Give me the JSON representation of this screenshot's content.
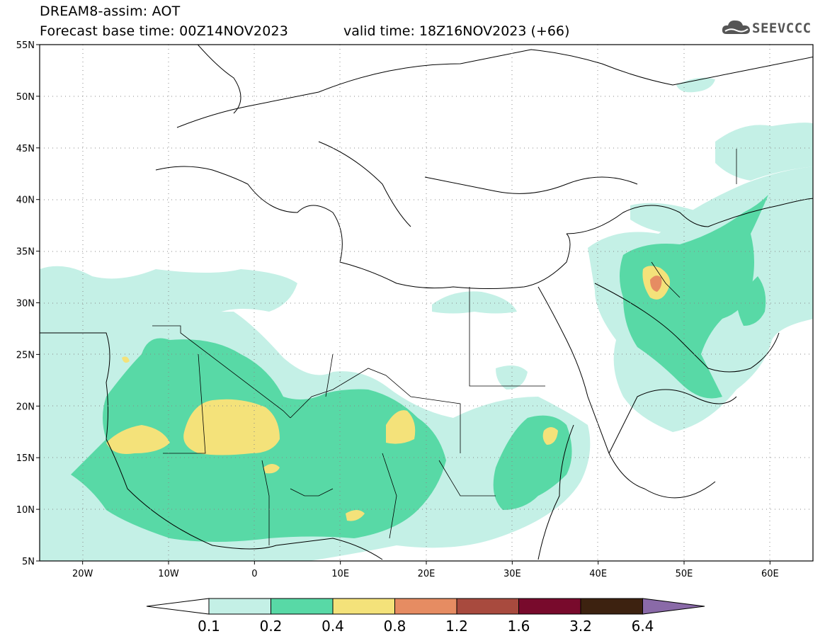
{
  "header": {
    "title": "DREAM8-assim: AOT",
    "base_time": "Forecast base time: 00Z14NOV2023",
    "valid_time": "valid time: 18Z16NOV2023 (+66)",
    "logo_text": "SEEVCCC"
  },
  "map": {
    "lon_range": [
      -25,
      65
    ],
    "lat_range": [
      5,
      55
    ],
    "lat_ticks": [
      {
        "value": 55,
        "label": "55N"
      },
      {
        "value": 50,
        "label": "50N"
      },
      {
        "value": 45,
        "label": "45N"
      },
      {
        "value": 40,
        "label": "40N"
      },
      {
        "value": 35,
        "label": "35N"
      },
      {
        "value": 30,
        "label": "30N"
      },
      {
        "value": 25,
        "label": "25N"
      },
      {
        "value": 20,
        "label": "20N"
      },
      {
        "value": 15,
        "label": "15N"
      },
      {
        "value": 10,
        "label": "10N"
      },
      {
        "value": 5,
        "label": "5N"
      }
    ],
    "lon_ticks": [
      {
        "value": -20,
        "label": "20W"
      },
      {
        "value": -10,
        "label": "10W"
      },
      {
        "value": 0,
        "label": "0"
      },
      {
        "value": 10,
        "label": "10E"
      },
      {
        "value": 20,
        "label": "20E"
      },
      {
        "value": 30,
        "label": "30E"
      },
      {
        "value": 40,
        "label": "40E"
      },
      {
        "value": 50,
        "label": "50E"
      },
      {
        "value": 60,
        "label": "60E"
      }
    ]
  },
  "colorbar": {
    "levels": [
      "0.1",
      "0.2",
      "0.4",
      "0.8",
      "1.2",
      "1.6",
      "3.2",
      "6.4"
    ],
    "colors": [
      "#c4f0e6",
      "#58d9a6",
      "#f4e27a",
      "#e68c62",
      "#a84a3e",
      "#780a2c",
      "#3d2210",
      "#8a6aa8"
    ]
  },
  "colors": {
    "aot_01": "#c4f0e6",
    "aot_02": "#58d9a6",
    "aot_04": "#f4e27a",
    "aot_08": "#e68c62",
    "aot_12": "#a84a3e"
  }
}
